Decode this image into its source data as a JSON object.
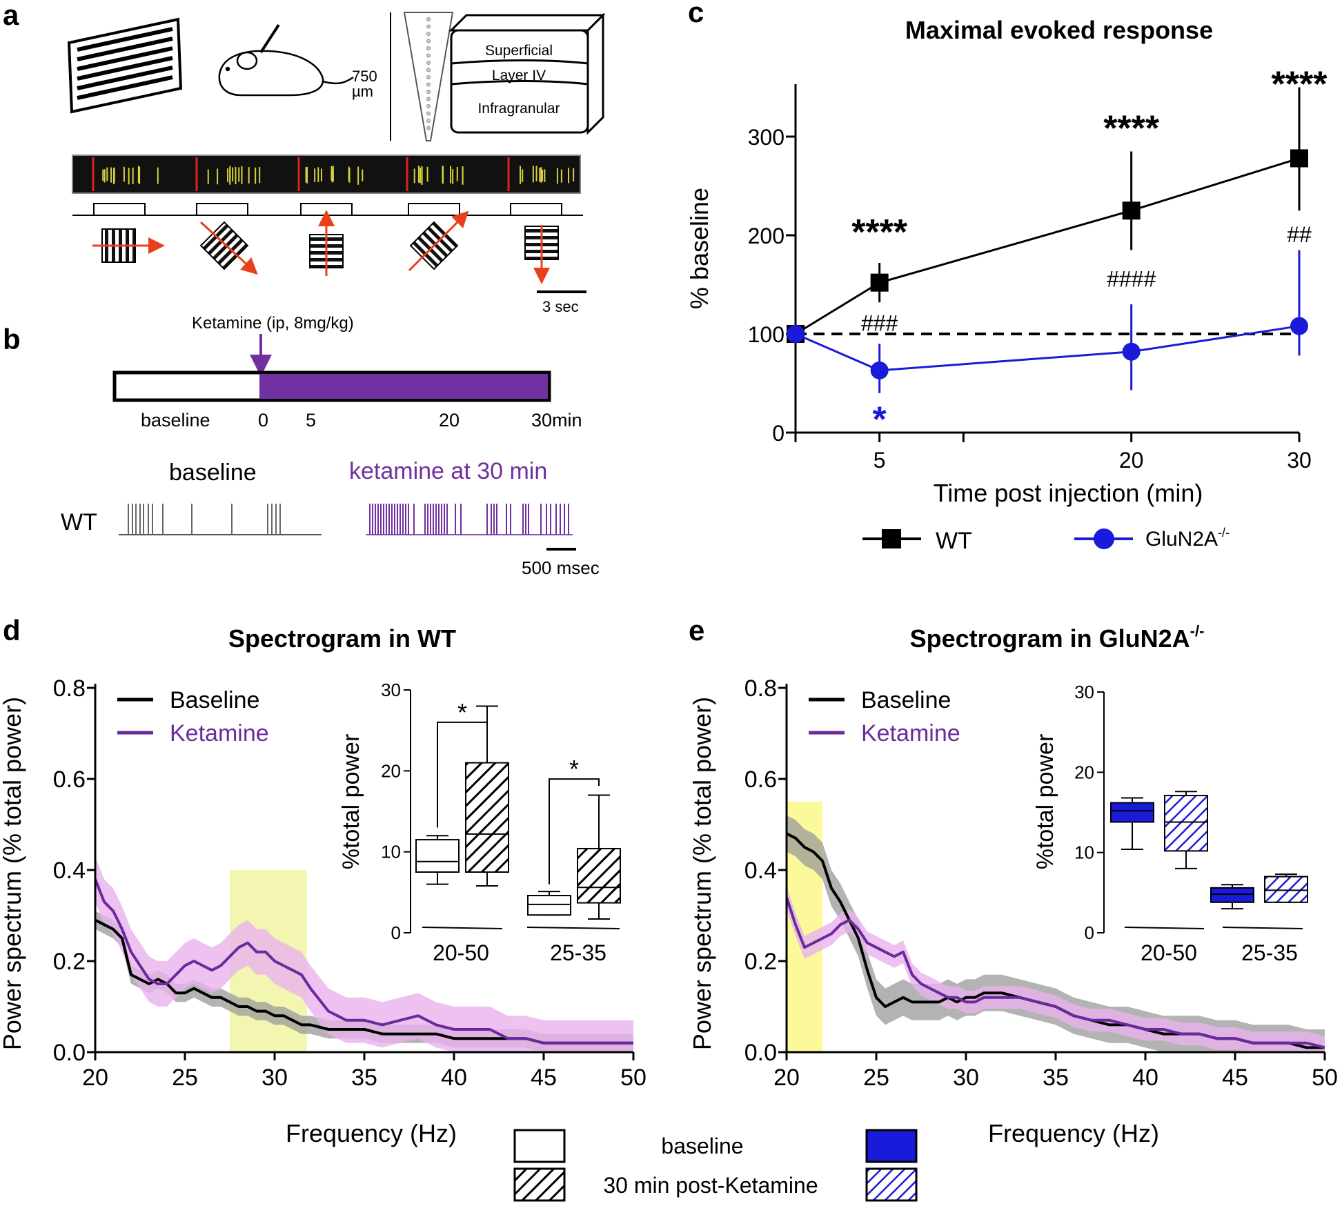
{
  "figure": {
    "panel_letters": {
      "a": "a",
      "b": "b",
      "c": "c",
      "d": "d",
      "e": "e"
    }
  },
  "panel_a": {
    "depth_label": "750",
    "depth_unit": "µm",
    "layers": [
      "Superficial",
      "Layer IV",
      "Infragranular"
    ],
    "scale_bar": "3 sec",
    "stimulus_directions": [
      "right",
      "down-right",
      "up",
      "up-right",
      "down"
    ]
  },
  "panel_b": {
    "injection_label": "Ketamine  (ip, 8mg/kg)",
    "timeline_labels": {
      "baseline": "baseline",
      "t0": "0",
      "t5": "5",
      "t20": "20",
      "t30": "30min"
    },
    "trace_baseline_title": "baseline",
    "trace_ketamine_title": "ketamine at 30 min",
    "genotype": "WT",
    "scale_bar": "500 msec",
    "colors": {
      "ketamine": "#7030a0"
    }
  },
  "chart_data": [
    {
      "id": "c",
      "type": "line",
      "title": "Maximal evoked response",
      "xlabel": "Time post injection (min)",
      "ylabel": "% baseline",
      "x_ticks": [
        "5",
        "20",
        "30"
      ],
      "y_ticks": [
        "0",
        "100",
        "200",
        "300"
      ],
      "ylim": [
        0,
        350
      ],
      "series": [
        {
          "name": "WT",
          "color": "#000000",
          "marker": "square",
          "x": [
            0,
            5,
            20,
            30
          ],
          "y": [
            100,
            152,
            225,
            278
          ],
          "err_low": [
            100,
            132,
            185,
            225
          ],
          "err_high": [
            100,
            172,
            285,
            350
          ]
        },
        {
          "name": "GluN2A",
          "superscript": "-/-",
          "color": "#1a1adb",
          "marker": "circle",
          "x": [
            0,
            5,
            20,
            30
          ],
          "y": [
            100,
            63,
            82,
            108
          ],
          "err_low": [
            100,
            40,
            43,
            78
          ],
          "err_high": [
            100,
            90,
            130,
            185
          ]
        }
      ],
      "reference_line": 100,
      "annotations": [
        {
          "text": "****",
          "x": 5,
          "y": 205,
          "color": "#000000"
        },
        {
          "text": "****",
          "x": 20,
          "y": 310,
          "color": "#000000"
        },
        {
          "text": "****",
          "x": 30,
          "y": 355,
          "color": "#000000"
        },
        {
          "text": "###",
          "x": 5,
          "y": 110,
          "color": "#000000"
        },
        {
          "text": "####",
          "x": 20,
          "y": 155,
          "color": "#000000"
        },
        {
          "text": "##",
          "x": 30,
          "y": 200,
          "color": "#000000"
        },
        {
          "text": "*",
          "x": 5,
          "y": 15,
          "color": "#1a1adb"
        }
      ]
    },
    {
      "id": "d",
      "type": "line",
      "title": "Spectrogram in WT",
      "xlabel": "Frequency (Hz)",
      "ylabel": "Power spectrum (% total power)",
      "x_ticks": [
        "20",
        "25",
        "30",
        "35",
        "40",
        "45",
        "50"
      ],
      "y_ticks": [
        "0.0",
        "0.2",
        "0.4",
        "0.6",
        "0.8"
      ],
      "xlim": [
        20,
        50
      ],
      "ylim": [
        0,
        0.8
      ],
      "highlight_x": [
        27.5,
        31.8
      ],
      "series": [
        {
          "name": "Baseline",
          "color": "#000000",
          "band": "#9a9a9a",
          "x": [
            20,
            20.5,
            21,
            21.5,
            22,
            22.5,
            23,
            23.5,
            24,
            24.5,
            25,
            25.5,
            26,
            26.5,
            27,
            27.5,
            28,
            28.5,
            29,
            29.5,
            30,
            30.5,
            31,
            31.5,
            32,
            33,
            34,
            35,
            36,
            37,
            38,
            39,
            40,
            41,
            42,
            43,
            44,
            45,
            46,
            47,
            48,
            49,
            50
          ],
          "y": [
            0.29,
            0.28,
            0.27,
            0.25,
            0.17,
            0.16,
            0.15,
            0.16,
            0.15,
            0.13,
            0.13,
            0.14,
            0.13,
            0.12,
            0.12,
            0.11,
            0.1,
            0.1,
            0.09,
            0.09,
            0.08,
            0.08,
            0.07,
            0.06,
            0.06,
            0.05,
            0.05,
            0.05,
            0.04,
            0.04,
            0.04,
            0.04,
            0.03,
            0.03,
            0.03,
            0.03,
            0.03,
            0.02,
            0.02,
            0.02,
            0.02,
            0.02,
            0.02
          ],
          "band_halfwidth": 0.02
        },
        {
          "name": "Ketamine",
          "color": "#6a2a9e",
          "band": "#e9b3ee",
          "x": [
            20,
            20.5,
            21,
            21.5,
            22,
            22.5,
            23,
            23.5,
            24,
            24.5,
            25,
            25.5,
            26,
            26.5,
            27,
            27.5,
            28,
            28.5,
            29,
            29.5,
            30,
            30.5,
            31,
            31.5,
            32,
            33,
            34,
            35,
            36,
            37,
            38,
            39,
            40,
            41,
            42,
            43,
            44,
            45,
            46,
            47,
            48,
            49,
            50
          ],
          "y": [
            0.38,
            0.33,
            0.31,
            0.27,
            0.22,
            0.19,
            0.16,
            0.15,
            0.15,
            0.17,
            0.19,
            0.2,
            0.19,
            0.18,
            0.19,
            0.21,
            0.23,
            0.24,
            0.22,
            0.22,
            0.2,
            0.19,
            0.18,
            0.17,
            0.14,
            0.09,
            0.07,
            0.07,
            0.06,
            0.07,
            0.08,
            0.06,
            0.05,
            0.05,
            0.05,
            0.03,
            0.03,
            0.02,
            0.02,
            0.02,
            0.02,
            0.02,
            0.02
          ],
          "band_halfwidth": 0.05
        }
      ],
      "legend": [
        "Baseline",
        "Ketamine"
      ],
      "inset": {
        "ylabel": "%total power",
        "y_ticks": [
          "0",
          "10",
          "20",
          "30"
        ],
        "ylim": [
          0,
          30
        ],
        "groups": [
          "20-50",
          "25-35"
        ],
        "boxes": [
          {
            "group": "20-50",
            "condition": "baseline",
            "min": 6,
            "q1": 7.5,
            "median": 8.8,
            "q3": 11.5,
            "max": 12
          },
          {
            "group": "20-50",
            "condition": "ketamine",
            "min": 5.8,
            "q1": 7.5,
            "median": 12.2,
            "q3": 21,
            "max": 28
          },
          {
            "group": "25-35",
            "condition": "baseline",
            "min": 2.2,
            "q1": 2.2,
            "median": 3.5,
            "q3": 4.6,
            "max": 5.1
          },
          {
            "group": "25-35",
            "condition": "ketamine",
            "min": 1.7,
            "q1": 3.7,
            "median": 5.6,
            "q3": 10.4,
            "max": 17
          }
        ],
        "significance": [
          "*",
          "*"
        ]
      }
    },
    {
      "id": "e",
      "type": "line",
      "title": "Spectrogram in GluN2A",
      "title_superscript": "-/-",
      "xlabel": "Frequency (Hz)",
      "ylabel": "Power spectrum (% total power)",
      "x_ticks": [
        "20",
        "25",
        "30",
        "35",
        "40",
        "45",
        "50"
      ],
      "y_ticks": [
        "0.0",
        "0.2",
        "0.4",
        "0.6",
        "0.8"
      ],
      "xlim": [
        20,
        50
      ],
      "ylim": [
        0,
        0.8
      ],
      "highlight_x": [
        20,
        22
      ],
      "series": [
        {
          "name": "Baseline",
          "color": "#000000",
          "band": "#9a9a9a",
          "x": [
            20,
            20.5,
            21,
            21.5,
            22,
            22.5,
            23,
            23.5,
            24,
            24.5,
            25,
            25.5,
            26,
            26.5,
            27,
            27.5,
            28,
            28.5,
            29,
            29.5,
            30,
            30.5,
            31,
            31.5,
            32,
            33,
            34,
            35,
            36,
            37,
            38,
            39,
            40,
            41,
            42,
            43,
            44,
            45,
            46,
            47,
            48,
            49,
            50
          ],
          "y": [
            0.48,
            0.47,
            0.45,
            0.44,
            0.42,
            0.36,
            0.33,
            0.29,
            0.25,
            0.18,
            0.12,
            0.1,
            0.11,
            0.12,
            0.11,
            0.11,
            0.11,
            0.11,
            0.12,
            0.11,
            0.12,
            0.12,
            0.13,
            0.13,
            0.13,
            0.12,
            0.11,
            0.1,
            0.08,
            0.07,
            0.06,
            0.06,
            0.05,
            0.04,
            0.04,
            0.04,
            0.03,
            0.03,
            0.02,
            0.02,
            0.02,
            0.01,
            0.01
          ],
          "band_halfwidth": 0.04
        },
        {
          "name": "Ketamine",
          "color": "#6a2a9e",
          "band": "#e9b3ee",
          "x": [
            20,
            20.5,
            21,
            21.5,
            22,
            22.5,
            23,
            23.5,
            24,
            24.5,
            25,
            25.5,
            26,
            26.5,
            27,
            27.5,
            28,
            28.5,
            29,
            29.5,
            30,
            30.5,
            31,
            31.5,
            32,
            33,
            34,
            35,
            36,
            37,
            38,
            39,
            40,
            41,
            42,
            43,
            44,
            45,
            46,
            47,
            48,
            49,
            50
          ],
          "y": [
            0.34,
            0.28,
            0.23,
            0.24,
            0.25,
            0.26,
            0.28,
            0.29,
            0.27,
            0.24,
            0.23,
            0.22,
            0.21,
            0.22,
            0.17,
            0.15,
            0.14,
            0.13,
            0.12,
            0.12,
            0.11,
            0.11,
            0.12,
            0.12,
            0.12,
            0.12,
            0.11,
            0.1,
            0.08,
            0.07,
            0.07,
            0.06,
            0.05,
            0.05,
            0.04,
            0.04,
            0.03,
            0.03,
            0.02,
            0.02,
            0.02,
            0.02,
            0.01
          ],
          "band_halfwidth": 0.025
        }
      ],
      "legend": [
        "Baseline",
        "Ketamine"
      ],
      "inset": {
        "ylabel": "%total power",
        "y_ticks": [
          "0",
          "10",
          "20",
          "30"
        ],
        "ylim": [
          0,
          30
        ],
        "groups": [
          "20-50",
          "25-35"
        ],
        "boxes": [
          {
            "group": "20-50",
            "condition": "baseline",
            "min": 10.4,
            "q1": 13.8,
            "median": 15.2,
            "q3": 16.2,
            "max": 16.8
          },
          {
            "group": "20-50",
            "condition": "ketamine",
            "min": 8.0,
            "q1": 10.2,
            "median": 13.8,
            "q3": 17.1,
            "max": 17.6
          },
          {
            "group": "25-35",
            "condition": "baseline",
            "min": 3.0,
            "q1": 3.8,
            "median": 4.8,
            "q3": 5.6,
            "max": 6.0
          },
          {
            "group": "25-35",
            "condition": "ketamine",
            "min": 3.8,
            "q1": 3.8,
            "median": 5.3,
            "q3": 7.0,
            "max": 7.3
          }
        ],
        "significance": []
      }
    }
  ],
  "bottom_legend": {
    "baseline": "baseline",
    "ketamine": "30 min post-Ketamine"
  },
  "colors": {
    "wt_line": "#000000",
    "ko_line": "#1a1adb",
    "ketamine": "#6a2a9e",
    "ketamine_band": "#e9b3ee",
    "baseline_band": "#9a9a9a",
    "highlight": "#f5f7a8",
    "ko_box": "#1a1adb",
    "arrow": "#e8401c"
  }
}
